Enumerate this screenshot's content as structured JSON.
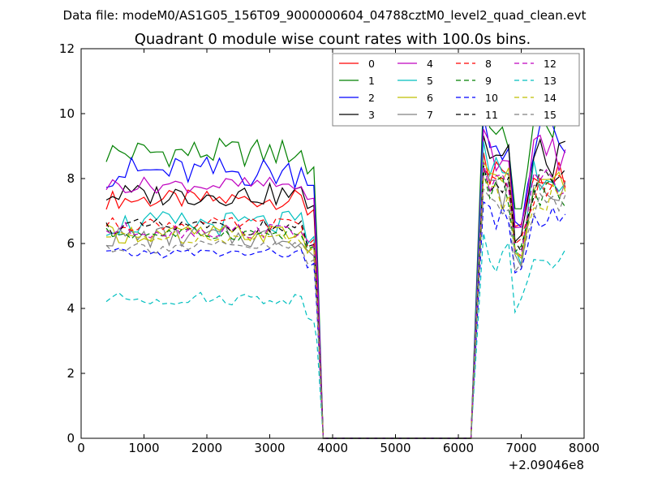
{
  "chart_data": {
    "type": "line",
    "suptitle": "Data file: modeM0/AS1G05_156T09_9000000604_04788cztM0_level2_quad_clean.evt",
    "title": "Quadrant 0 module wise count rates with 100.0s bins.",
    "xlabel": "",
    "ylabel": "",
    "x_offset_label": "+2.09046e8",
    "xlim": [
      0,
      8000
    ],
    "ylim": [
      0,
      12
    ],
    "xticks": [
      0,
      1000,
      2000,
      3000,
      4000,
      5000,
      6000,
      7000,
      8000
    ],
    "yticks": [
      0,
      2,
      4,
      6,
      8,
      10,
      12
    ],
    "legend_location": "upper-right",
    "legend_columns": 4,
    "gap": {
      "drop_start": 3750,
      "zero_start": 3850,
      "zero_end": 6200,
      "rise_end": 6400
    },
    "series": [
      {
        "name": "0",
        "color": "#ff0000",
        "style": "solid",
        "pre": 7.35,
        "pre_amp": 0.3,
        "post": 8.2,
        "post_amp": 0.5,
        "dip": 6.6
      },
      {
        "name": "1",
        "color": "#008000",
        "style": "solid",
        "pre": 8.8,
        "pre_amp": 0.45,
        "post": 9.6,
        "post_amp": 0.8,
        "dip": 7.0
      },
      {
        "name": "2",
        "color": "#0000ff",
        "style": "solid",
        "pre": 8.2,
        "pre_amp": 0.5,
        "post": 9.1,
        "post_amp": 0.7,
        "dip": 6.5
      },
      {
        "name": "3",
        "color": "#000000",
        "style": "solid",
        "pre": 7.5,
        "pre_amp": 0.35,
        "post": 8.6,
        "post_amp": 0.6,
        "dip": 6.0
      },
      {
        "name": "4",
        "color": "#bf00bf",
        "style": "solid",
        "pre": 7.8,
        "pre_amp": 0.25,
        "post": 8.8,
        "post_amp": 0.6,
        "dip": 6.3
      },
      {
        "name": "5",
        "color": "#00bfbf",
        "style": "solid",
        "pre": 6.6,
        "pre_amp": 0.4,
        "post": 8.3,
        "post_amp": 0.7,
        "dip": 5.6
      },
      {
        "name": "6",
        "color": "#bfbf00",
        "style": "solid",
        "pre": 6.3,
        "pre_amp": 0.3,
        "post": 7.8,
        "post_amp": 0.6,
        "dip": 5.5
      },
      {
        "name": "7",
        "color": "#808080",
        "style": "solid",
        "pre": 6.2,
        "pre_amp": 0.35,
        "post": 7.6,
        "post_amp": 0.6,
        "dip": 5.4
      },
      {
        "name": "8",
        "color": "#ff0000",
        "style": "dashed",
        "pre": 6.6,
        "pre_amp": 0.2,
        "post": 7.7,
        "post_amp": 0.5,
        "dip": 5.9
      },
      {
        "name": "9",
        "color": "#008000",
        "style": "dashed",
        "pre": 6.3,
        "pre_amp": 0.2,
        "post": 7.6,
        "post_amp": 0.5,
        "dip": 5.7
      },
      {
        "name": "10",
        "color": "#0000ff",
        "style": "dashed",
        "pre": 5.7,
        "pre_amp": 0.15,
        "post": 6.8,
        "post_amp": 0.4,
        "dip": 5.0
      },
      {
        "name": "11",
        "color": "#000000",
        "style": "dashed",
        "pre": 6.5,
        "pre_amp": 0.25,
        "post": 7.8,
        "post_amp": 0.5,
        "dip": 5.8
      },
      {
        "name": "12",
        "color": "#bf00bf",
        "style": "dashed",
        "pre": 6.4,
        "pre_amp": 0.25,
        "post": 7.9,
        "post_amp": 0.5,
        "dip": 5.9
      },
      {
        "name": "13",
        "color": "#00bfbf",
        "style": "dashed",
        "pre": 4.3,
        "pre_amp": 0.2,
        "post": 5.6,
        "post_amp": 0.6,
        "dip": 4.1
      },
      {
        "name": "14",
        "color": "#bfbf00",
        "style": "dashed",
        "pre": 6.2,
        "pre_amp": 0.2,
        "post": 7.4,
        "post_amp": 0.5,
        "dip": 5.6
      },
      {
        "name": "15",
        "color": "#808080",
        "style": "dashed",
        "pre": 5.9,
        "pre_amp": 0.2,
        "post": 7.2,
        "post_amp": 0.4,
        "dip": 5.4
      }
    ]
  }
}
